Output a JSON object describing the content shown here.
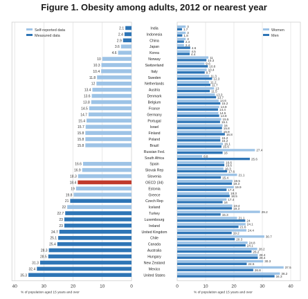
{
  "title": "Figure 1. Obesity among adults, 2012 or nearest year",
  "colors": {
    "self_reported": "#9dc3e6",
    "measured": "#2e75b6",
    "women": "#9dc3e6",
    "men": "#2e75b6",
    "oecd": "#c0392b"
  },
  "chart_data": [
    {
      "type": "bar",
      "orientation": "horizontal",
      "direction": "right-to-left",
      "categories": [
        "India",
        "Indonesia",
        "China",
        "Japan",
        "Korea",
        "Norway",
        "Switzerland",
        "Italy",
        "Sweden",
        "Netherlands",
        "Austria",
        "Denmark",
        "Belgium",
        "France",
        "Germany",
        "Portugal",
        "Israel",
        "Finland",
        "Poland",
        "Brazil",
        "Russian Fed.",
        "South Africa",
        "Spain",
        "Slovak Rep",
        "Slovenia",
        "OECD (34)",
        "Estonia",
        "Greece",
        "Czech Rep",
        "Iceland",
        "Turkey",
        "Luxembourg",
        "Ireland",
        "United Kingdom",
        "Chile",
        "Canada",
        "Australia",
        "Hungary",
        "New Zealand",
        "Mexico",
        "United States"
      ],
      "values": [
        2.1,
        2.4,
        2.9,
        3.6,
        4.6,
        10,
        10.3,
        10.4,
        11.8,
        12,
        13.4,
        13.6,
        13.8,
        14.5,
        14.7,
        15.4,
        15.7,
        15.8,
        15.8,
        15.8,
        null,
        null,
        16.6,
        16.9,
        18.3,
        18.4,
        19.0,
        19.8,
        21.0,
        22.0,
        22.7,
        23.0,
        23.0,
        24.7,
        25.1,
        25.4,
        28.3,
        28.5,
        31.3,
        32.4,
        35.3
      ],
      "measure_type": [
        "measured",
        "measured",
        "measured",
        "self-reported",
        "self-reported",
        "self-reported",
        "self-reported",
        "self-reported",
        "self-reported",
        "self-reported",
        "self-reported",
        "self-reported",
        "self-reported",
        "self-reported",
        "self-reported",
        "self-reported",
        "self-reported",
        "self-reported",
        "self-reported",
        "self-reported",
        "measured",
        "measured",
        "self-reported",
        "self-reported",
        "self-reported",
        "oecd",
        "self-reported",
        "self-reported",
        "measured",
        "self-reported",
        "measured",
        "measured",
        "measured",
        "measured",
        "measured",
        "measured",
        "measured",
        "measured",
        "measured",
        "measured",
        "measured"
      ],
      "xlim": [
        0,
        40
      ],
      "xticks": [
        40,
        30,
        20,
        10,
        0
      ],
      "xlabel": "% of population aged 15 years and over",
      "legend": [
        "Self-reported data",
        "Measured data"
      ]
    },
    {
      "type": "bar",
      "orientation": "horizontal",
      "categories": [
        "India",
        "Indonesia",
        "China",
        "Japan",
        "Korea",
        "Norway",
        "Switzerland",
        "Italy",
        "Sweden",
        "Netherlands",
        "Austria",
        "Denmark",
        "Belgium",
        "France",
        "Germany",
        "Portugal",
        "Israel",
        "Finland",
        "Poland",
        "Brazil",
        "Russian Fed.",
        "South Africa",
        "Spain",
        "Slovak Rep",
        "Slovenia",
        "OECD (34)",
        "Estonia",
        "Greece",
        "Czech Rep",
        "Iceland",
        "Turkey",
        "Luxembourg",
        "Ireland",
        "United Kingdom",
        "Chile",
        "Canada",
        "Australia",
        "Hungary",
        "New Zealand",
        "Mexico",
        "United States"
      ],
      "series": [
        {
          "name": "Women",
          "values": [
            3,
            3,
            3,
            2.4,
            4.5,
            11,
            9.6,
            10.4,
            11.3,
            11.2,
            13.0,
            13.3,
            14.6,
            14.8,
            14.5,
            15.5,
            16.0,
            15.8,
            15.2,
            16.1,
            27.4,
            8.8,
            16.6,
            16.3,
            21.1,
            19.5,
            19.9,
            18.3,
            17.4,
            19.4,
            29.2,
            21.1,
            24.1,
            24.4,
            30.7,
            24.8,
            28.2,
            28.4,
            30.3,
            37.5,
            36.2
          ]
        },
        {
          "name": "Men",
          "values": [
            1.7,
            1.8,
            2.4,
            4.6,
            4.4,
            10.3,
            10.8,
            9.7,
            12.3,
            11.7,
            11.5,
            13.7,
            15.2,
            14.4,
            14.8,
            15.1,
            15.8,
            16.8,
            15.2,
            15.6,
            16.0,
            25.6,
            16.6,
            17.6,
            15.4,
            19.3,
            17.4,
            18.5,
            16.0,
            19.3,
            15.3,
            24.0,
            21.6,
            19.2,
            20.3,
            24.1,
            26.2,
            28.4,
            24.5,
            26.8,
            34.3
          ]
        }
      ],
      "xlim": [
        0,
        40
      ],
      "xticks": [
        0,
        10,
        20,
        30,
        40
      ],
      "xlabel": "% of population aged 15 years and over",
      "legend": [
        "Women",
        "Men"
      ]
    }
  ]
}
